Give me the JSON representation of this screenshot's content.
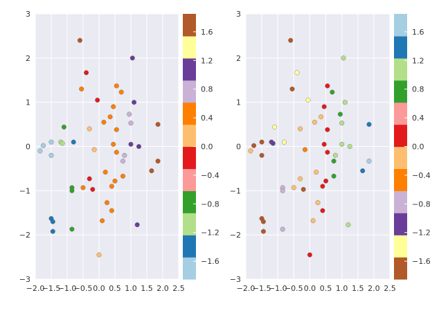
{
  "chart_data": [
    {
      "type": "scatter",
      "name": "left",
      "xlim": [
        -2.0,
        2.5
      ],
      "ylim": [
        -3,
        3
      ],
      "xticks": [
        -2.0,
        -1.5,
        -1.0,
        -0.5,
        0.0,
        0.5,
        1.0,
        1.5,
        2.0,
        2.5
      ],
      "xtick_labels": [
        "−2.0",
        "−1.5",
        "−1.0",
        "−0.5",
        "0.0",
        "0.5",
        "1.0",
        "1.5",
        "2.0",
        "2.5"
      ],
      "yticks": [
        -3,
        -2,
        -1,
        0,
        1,
        2,
        3
      ],
      "ytick_labels": [
        "−3",
        "−2",
        "−1",
        "0",
        "1",
        "2",
        "3"
      ],
      "colormap": "Paired",
      "clim": [
        -1.85,
        1.85
      ],
      "colorbar_ticks": [
        1.6,
        1.2,
        0.8,
        0.4,
        0.0,
        -0.4,
        -0.8,
        -1.2,
        -1.6
      ],
      "colorbar_labels": [
        "1.6",
        "1.2",
        "0.8",
        "0.4",
        "0.0",
        "−0.4",
        "−0.8",
        "−1.2",
        "−1.6"
      ],
      "points": [
        {
          "x": -0.6,
          "y": 2.4,
          "c": 1.7
        },
        {
          "x": 1.05,
          "y": 2.0,
          "c": 1.15
        },
        {
          "x": -0.4,
          "y": 1.67,
          "c": -0.1
        },
        {
          "x": 0.55,
          "y": 1.37,
          "c": 0.5
        },
        {
          "x": -0.55,
          "y": 1.3,
          "c": 0.5
        },
        {
          "x": 0.7,
          "y": 1.23,
          "c": 0.6
        },
        {
          "x": -0.05,
          "y": 1.05,
          "c": -0.05
        },
        {
          "x": 0.45,
          "y": 0.9,
          "c": 0.4
        },
        {
          "x": 1.1,
          "y": 1.0,
          "c": 1.05
        },
        {
          "x": 0.95,
          "y": 0.73,
          "c": 0.85
        },
        {
          "x": 0.35,
          "y": 0.67,
          "c": 0.4
        },
        {
          "x": 0.15,
          "y": 0.55,
          "c": 0.5
        },
        {
          "x": 1.0,
          "y": 0.53,
          "c": 0.85
        },
        {
          "x": 1.85,
          "y": 0.5,
          "c": 1.75
        },
        {
          "x": -1.1,
          "y": 0.44,
          "c": -0.8
        },
        {
          "x": -0.3,
          "y": 0.4,
          "c": 0.2
        },
        {
          "x": 0.55,
          "y": 0.38,
          "c": 0.55
        },
        {
          "x": -1.2,
          "y": 0.1,
          "c": -1.0
        },
        {
          "x": -1.15,
          "y": 0.07,
          "c": -1.05
        },
        {
          "x": -0.8,
          "y": 0.1,
          "c": -1.3
        },
        {
          "x": -1.5,
          "y": 0.1,
          "c": -1.55
        },
        {
          "x": -1.75,
          "y": 0.02,
          "c": -1.65
        },
        {
          "x": 0.45,
          "y": 0.05,
          "c": 0.4
        },
        {
          "x": 1.0,
          "y": 0.05,
          "c": 1.0
        },
        {
          "x": 1.25,
          "y": 0.0,
          "c": 1.1
        },
        {
          "x": -0.15,
          "y": -0.07,
          "c": 0.0
        },
        {
          "x": -1.85,
          "y": -0.1,
          "c": -1.75
        },
        {
          "x": 0.55,
          "y": -0.13,
          "c": 0.5
        },
        {
          "x": -1.5,
          "y": -0.2,
          "c": -1.6
        },
        {
          "x": 0.8,
          "y": -0.2,
          "c": 0.8
        },
        {
          "x": 0.75,
          "y": -0.33,
          "c": 0.7
        },
        {
          "x": 1.85,
          "y": -0.33,
          "c": 1.8
        },
        {
          "x": 1.65,
          "y": -0.55,
          "c": 1.6
        },
        {
          "x": 0.2,
          "y": -0.58,
          "c": 0.4
        },
        {
          "x": 0.75,
          "y": -0.67,
          "c": 0.6
        },
        {
          "x": -0.3,
          "y": -0.73,
          "c": -0.05
        },
        {
          "x": 0.5,
          "y": -0.78,
          "c": 0.45
        },
        {
          "x": -0.85,
          "y": -0.93,
          "c": -0.9
        },
        {
          "x": -0.5,
          "y": -0.93,
          "c": 0.5
        },
        {
          "x": 0.4,
          "y": -0.9,
          "c": 0.35
        },
        {
          "x": -0.2,
          "y": -0.97,
          "c": -0.05
        },
        {
          "x": -0.85,
          "y": -1.0,
          "c": -0.85
        },
        {
          "x": 0.25,
          "y": -1.27,
          "c": 0.45
        },
        {
          "x": 0.4,
          "y": -1.45,
          "c": 0.4
        },
        {
          "x": -1.5,
          "y": -1.63,
          "c": -1.4
        },
        {
          "x": -1.45,
          "y": -1.7,
          "c": -1.45
        },
        {
          "x": 0.1,
          "y": -1.68,
          "c": 0.5
        },
        {
          "x": 1.2,
          "y": -1.77,
          "c": 1.2
        },
        {
          "x": -0.85,
          "y": -1.87,
          "c": -0.85
        },
        {
          "x": -1.45,
          "y": -1.92,
          "c": -1.45
        },
        {
          "x": 0.0,
          "y": -2.45,
          "c": 0.05
        }
      ]
    },
    {
      "type": "scatter",
      "name": "right",
      "xlim": [
        -2.0,
        2.5
      ],
      "ylim": [
        -3,
        3
      ],
      "xticks": [
        -2.0,
        -1.5,
        -1.0,
        -0.5,
        0.0,
        0.5,
        1.0,
        1.5,
        2.0,
        2.5
      ],
      "xtick_labels": [
        "−2.0",
        "−1.5",
        "−1.0",
        "−0.5",
        "0.0",
        "0.5",
        "1.0",
        "1.5",
        "2.0",
        "2.5"
      ],
      "yticks": [
        -3,
        -2,
        -1,
        0,
        1,
        2,
        3
      ],
      "ytick_labels": [
        "−3",
        "−2",
        "−1",
        "0",
        "1",
        "2",
        "3"
      ],
      "colormap": "Paired_r",
      "clim": [
        -1.85,
        1.85
      ],
      "colorbar_ticks": [
        1.6,
        1.2,
        0.8,
        0.4,
        0.0,
        -0.4,
        -0.8,
        -1.2,
        -1.6
      ],
      "colorbar_labels": [
        "1.6",
        "1.2",
        "0.8",
        "0.4",
        "0.0",
        "−0.4",
        "−0.8",
        "−1.2",
        "−1.6"
      ],
      "points": [
        {
          "x": -0.6,
          "y": 2.4,
          "c": -1.75
        },
        {
          "x": 1.05,
          "y": 2.0,
          "c": 1.05
        },
        {
          "x": -0.4,
          "y": 1.67,
          "c": -1.5
        },
        {
          "x": 0.55,
          "y": 1.37,
          "c": 0.2
        },
        {
          "x": -0.55,
          "y": 1.3,
          "c": -1.6
        },
        {
          "x": 0.7,
          "y": 1.23,
          "c": 0.85
        },
        {
          "x": -0.05,
          "y": 1.05,
          "c": -1.4
        },
        {
          "x": 0.45,
          "y": 0.9,
          "c": 0.25
        },
        {
          "x": 1.1,
          "y": 1.0,
          "c": 1.05
        },
        {
          "x": 0.95,
          "y": 0.73,
          "c": 0.8
        },
        {
          "x": 0.35,
          "y": 0.67,
          "c": -0.05
        },
        {
          "x": 0.15,
          "y": 0.55,
          "c": -0.1
        },
        {
          "x": 1.0,
          "y": 0.53,
          "c": 0.95
        },
        {
          "x": 1.85,
          "y": 0.5,
          "c": 1.5
        },
        {
          "x": -1.1,
          "y": 0.44,
          "c": -1.25
        },
        {
          "x": -0.3,
          "y": 0.4,
          "c": -0.3
        },
        {
          "x": 0.55,
          "y": 0.38,
          "c": 0.3
        },
        {
          "x": -1.2,
          "y": 0.1,
          "c": -1.15
        },
        {
          "x": -1.15,
          "y": 0.07,
          "c": -1.1
        },
        {
          "x": -0.8,
          "y": 0.1,
          "c": -1.25
        },
        {
          "x": -1.5,
          "y": 0.1,
          "c": -1.7
        },
        {
          "x": -1.75,
          "y": 0.02,
          "c": -1.8
        },
        {
          "x": 0.45,
          "y": 0.05,
          "c": 0.2
        },
        {
          "x": 1.0,
          "y": 0.05,
          "c": 0.95
        },
        {
          "x": 1.25,
          "y": 0.0,
          "c": 1.0
        },
        {
          "x": -0.15,
          "y": -0.07,
          "c": -0.35
        },
        {
          "x": -1.85,
          "y": -0.1,
          "c": -0.05
        },
        {
          "x": 0.55,
          "y": -0.13,
          "c": 0.3
        },
        {
          "x": -1.5,
          "y": -0.2,
          "c": -1.65
        },
        {
          "x": 0.8,
          "y": -0.2,
          "c": 0.95
        },
        {
          "x": 0.75,
          "y": -0.33,
          "c": 0.85
        },
        {
          "x": 1.85,
          "y": -0.33,
          "c": 1.6
        },
        {
          "x": 1.65,
          "y": -0.55,
          "c": 1.45
        },
        {
          "x": 0.2,
          "y": -0.58,
          "c": -0.05
        },
        {
          "x": 0.75,
          "y": -0.67,
          "c": 0.85
        },
        {
          "x": -0.3,
          "y": -0.73,
          "c": -0.3
        },
        {
          "x": 0.5,
          "y": -0.78,
          "c": 0.25
        },
        {
          "x": -0.85,
          "y": -0.93,
          "c": -0.85
        },
        {
          "x": -0.5,
          "y": -0.93,
          "c": -0.3
        },
        {
          "x": 0.4,
          "y": -0.9,
          "c": 0.2
        },
        {
          "x": -0.2,
          "y": -0.97,
          "c": -1.7
        },
        {
          "x": -0.85,
          "y": -1.0,
          "c": -0.85
        },
        {
          "x": 0.25,
          "y": -1.27,
          "c": -0.05
        },
        {
          "x": 0.4,
          "y": -1.45,
          "c": 0.2
        },
        {
          "x": -1.5,
          "y": -1.63,
          "c": -1.65
        },
        {
          "x": -1.45,
          "y": -1.7,
          "c": -1.7
        },
        {
          "x": 0.1,
          "y": -1.68,
          "c": -0.05
        },
        {
          "x": 1.2,
          "y": -1.77,
          "c": 1.1
        },
        {
          "x": -0.85,
          "y": -1.87,
          "c": -0.85
        },
        {
          "x": -1.45,
          "y": -1.92,
          "c": -1.7
        },
        {
          "x": 0.0,
          "y": -2.45,
          "c": 0.15
        }
      ]
    }
  ],
  "colors": {
    "axes_bg": "#eaeaf2",
    "grid": "#ffffff",
    "text": "#333333",
    "marker_edge": "#666666",
    "paired": [
      "#a6cee3",
      "#1f78b4",
      "#b2df8a",
      "#33a02c",
      "#fb9a99",
      "#e31a1c",
      "#fdbf6f",
      "#ff7f00",
      "#cab2d6",
      "#6a3d9a",
      "#ffff99",
      "#b15928"
    ]
  }
}
